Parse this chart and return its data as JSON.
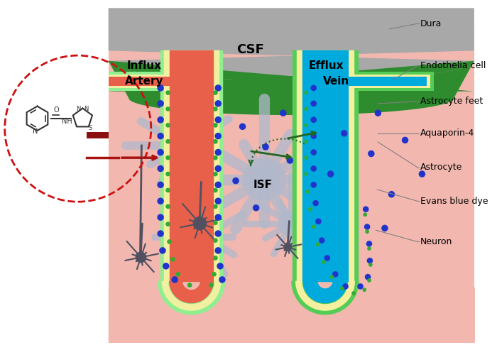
{
  "bg_color": "#FFFFFF",
  "tissue_bg": "#F2B8B0",
  "dura_gray": "#A8A8A8",
  "csf_green": "#2E8B2E",
  "artery_red": "#E8604A",
  "artery_lining_green": "#90EE90",
  "artery_lining_yellow": "#F0F0A0",
  "vein_blue": "#00AADD",
  "vein_lining_green": "#55CC55",
  "vein_yellow": "#F5F0A0",
  "astrocyte_color": "#B0B8CC",
  "neuron_color": "#505060",
  "blue_dot": "#2233CC",
  "green_dot": "#33AA33",
  "arrow_green": "#226622",
  "arrow_red": "#AA1111",
  "dashed_circle_color": "#CC1111",
  "molecule_color": "#333333",
  "inhibit_bar_color": "#8B1111",
  "process_lengths": [
    0.8,
    1.2,
    0.9,
    1.4,
    0.7,
    1.1,
    1.3,
    0.85,
    1.0,
    0.75,
    1.15,
    0.95
  ]
}
